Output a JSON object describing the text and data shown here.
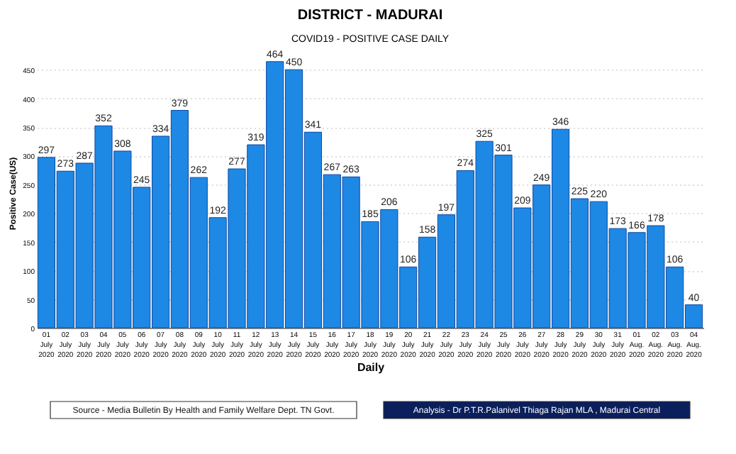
{
  "chart_data": {
    "type": "bar",
    "title": "DISTRICT - MADURAI",
    "subtitle": "COVID19 - POSITIVE CASE DAILY",
    "xlabel": "Daily",
    "ylabel": "Positive Case(US)",
    "categories": [
      "01 July 2020",
      "02 July 2020",
      "03 July 2020",
      "04 July 2020",
      "05 July 2020",
      "06 July 2020",
      "07 July 2020",
      "08 July 2020",
      "09 July 2020",
      "10 July 2020",
      "11 July 2020",
      "12 July 2020",
      "13 July 2020",
      "14 July 2020",
      "15 July 2020",
      "16 July 2020",
      "17 July 2020",
      "18 July 2020",
      "19 July 2020",
      "20 July 2020",
      "21 July 2020",
      "22 July 2020",
      "23 July 2020",
      "24 July 2020",
      "25 July 2020",
      "26 July 2020",
      "27 July 2020",
      "28 July 2020",
      "29 July 2020",
      "30 July 2020",
      "31 July 2020",
      "01 Aug. 2020",
      "02 Aug. 2020",
      "03 Aug. 2020",
      "04 Aug. 2020"
    ],
    "values": [
      297,
      273,
      287,
      352,
      308,
      245,
      334,
      379,
      262,
      192,
      277,
      319,
      464,
      450,
      341,
      267,
      263,
      185,
      206,
      106,
      158,
      197,
      274,
      325,
      301,
      209,
      249,
      346,
      225,
      220,
      173,
      166,
      178,
      106,
      40
    ],
    "color": "#1e88e5",
    "ylim": [
      0,
      470
    ],
    "yticks": [
      0,
      50,
      100,
      150,
      200,
      250,
      300,
      350,
      400,
      450
    ],
    "grid": "y",
    "data_labels": true,
    "annotations": [
      "Source - Media Bulletin By Health and Family Welfare Dept. TN Govt.",
      "Analysis - Dr P.T.R.Palanivel Thiaga Rajan MLA , Madurai Central"
    ]
  }
}
